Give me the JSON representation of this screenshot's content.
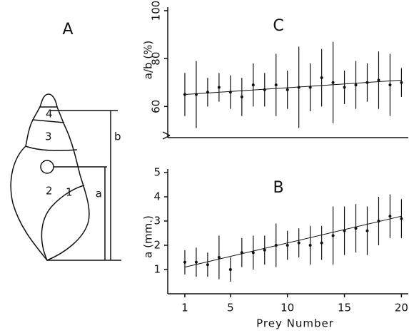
{
  "diagram": {
    "panel": "A",
    "whorls": [
      "1",
      "2",
      "3",
      "4"
    ],
    "a": "a",
    "b": "b"
  },
  "chart_data": [
    {
      "type": "errorbar",
      "title": "C",
      "ylabel": "a/b (%)",
      "x": [
        1,
        2,
        3,
        4,
        5,
        6,
        7,
        8,
        9,
        10,
        11,
        12,
        13,
        14,
        15,
        16,
        17,
        18,
        19,
        20
      ],
      "values": [
        65,
        65,
        66,
        68,
        66,
        64,
        69,
        67,
        69,
        67,
        68,
        68,
        72,
        70,
        68,
        69,
        70,
        71,
        69,
        70
      ],
      "errors": [
        9,
        14,
        6,
        6,
        7,
        8,
        9,
        7,
        13,
        8,
        17,
        10,
        12,
        17,
        7,
        10,
        8,
        12,
        13,
        6
      ],
      "fit": {
        "x": [
          1,
          20
        ],
        "values": [
          65,
          71
        ]
      },
      "xlim": [
        -0.5,
        20.6
      ],
      "ylim": [
        47,
        100
      ],
      "yticks": [
        60,
        80,
        100
      ],
      "color": "#111"
    },
    {
      "type": "errorbar",
      "title": "B",
      "ylabel": "a (mm.)",
      "xlabel": "Prey Number",
      "x": [
        1,
        2,
        3,
        4,
        5,
        6,
        7,
        8,
        9,
        10,
        11,
        12,
        13,
        14,
        15,
        16,
        17,
        18,
        19,
        20
      ],
      "values": [
        1.3,
        1.3,
        1.2,
        1.5,
        1.0,
        1.7,
        1.7,
        1.8,
        2.0,
        2.0,
        2.1,
        2.0,
        2.1,
        2.4,
        2.6,
        2.7,
        2.6,
        3.0,
        3.2,
        3.1
      ],
      "errors": [
        0.5,
        0.6,
        0.5,
        0.9,
        0.5,
        0.6,
        0.7,
        0.6,
        0.9,
        0.6,
        0.6,
        0.8,
        0.7,
        1.2,
        1.0,
        1.0,
        1.0,
        1.0,
        0.9,
        0.8
      ],
      "fit": {
        "x": [
          1,
          20
        ],
        "values": [
          1.1,
          3.2
        ]
      },
      "xlim": [
        -0.5,
        20.6
      ],
      "ylim": [
        0,
        5
      ],
      "xticks": [
        1,
        5,
        10,
        15,
        20
      ],
      "yticks": [
        1,
        2,
        3,
        4,
        5
      ],
      "color": "#111"
    }
  ]
}
